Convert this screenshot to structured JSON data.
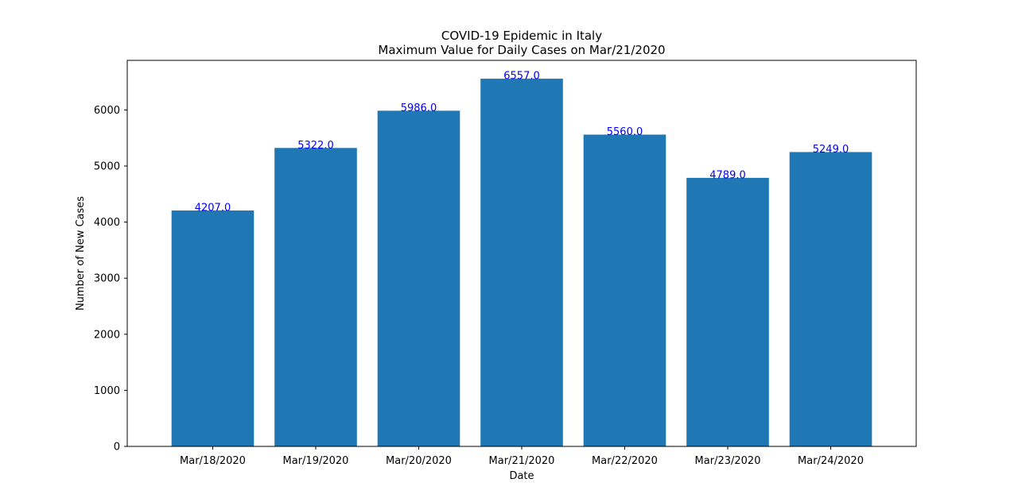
{
  "chart_data": {
    "type": "bar",
    "title": "COVID-19 Epidemic in Italy",
    "subtitle": "Maximum Value for Daily Cases on Mar/21/2020",
    "xlabel": "Date",
    "ylabel": "Number of New Cases",
    "categories": [
      "Mar/18/2020",
      "Mar/19/2020",
      "Mar/20/2020",
      "Mar/21/2020",
      "Mar/22/2020",
      "Mar/23/2020",
      "Mar/24/2020"
    ],
    "values": [
      4207,
      5322,
      5986,
      6557,
      5560,
      4789,
      5249
    ],
    "data_labels": [
      "4207.0",
      "5322.0",
      "5986.0",
      "6557.0",
      "5560.0",
      "4789.0",
      "5249.0"
    ],
    "ylim": [
      0,
      6884
    ],
    "yticks": [
      0,
      1000,
      2000,
      3000,
      4000,
      5000,
      6000
    ],
    "grid": false,
    "bar_color": "#1f77b4",
    "label_color": "#0000ff"
  }
}
